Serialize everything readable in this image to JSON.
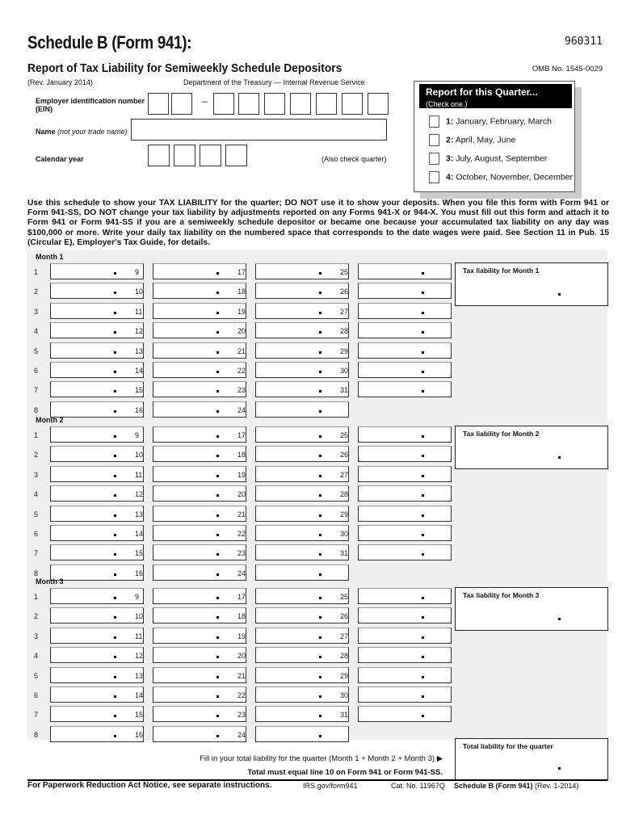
{
  "header": {
    "title": "Schedule B (Form 941):",
    "form_code": "960311",
    "subtitle": "Report of Tax Liability for Semiweekly Schedule Depositors",
    "omb": "OMB No. 1545-0029",
    "revision": "(Rev. January 2014)",
    "department": "Department of the Treasury — Internal Revenue Service"
  },
  "fields": {
    "ein_label_1": "Employer identification number",
    "ein_label_2": "(EIN)",
    "ein_dash": "–",
    "name_label": "Name",
    "name_hint": "(not your trade name)",
    "year_label": "Calendar year",
    "also_check": "(Also check quarter)"
  },
  "quarter": {
    "title": "Report for this Quarter...",
    "hint": "(Check one.)",
    "options": [
      {
        "num": "1:",
        "label": "January, February, March"
      },
      {
        "num": "2:",
        "label": "April, May, June"
      },
      {
        "num": "3:",
        "label": "July, August, September"
      },
      {
        "num": "4:",
        "label": "October, November, December"
      }
    ]
  },
  "instructions": "Use this schedule to show your TAX LIABILITY for the quarter; DO NOT use it to show your deposits. When you file this form with Form 941 or Form 941-SS, DO NOT change your tax liability by adjustments reported on any Forms 941-X or 944-X. You must fill out this form and attach it to Form 941 or Form 941-SS if you are a semiweekly schedule depositor or became one because your accumulated tax liability on any day was $100,000 or more. Write your daily tax liability on the numbered space that corresponds to the date wages were paid. See Section 11 in Pub. 15 (Circular E), Employer's Tax Guide, for details.",
  "months": [
    {
      "label": "Month 1",
      "total_label": "Tax liability for Month 1"
    },
    {
      "label": "Month 2",
      "total_label": "Tax liability for Month 2"
    },
    {
      "label": "Month 3",
      "total_label": "Tax liability for Month 3"
    }
  ],
  "day_columns": [
    [
      "1",
      "2",
      "3",
      "4",
      "5",
      "6",
      "7",
      "8"
    ],
    [
      "9",
      "10",
      "11",
      "12",
      "13",
      "14",
      "15",
      "16"
    ],
    [
      "17",
      "18",
      "19",
      "20",
      "21",
      "22",
      "23",
      "24"
    ],
    [
      "25",
      "26",
      "27",
      "28",
      "29",
      "30",
      "31"
    ]
  ],
  "total": {
    "label": "Total liability for the quarter",
    "instruction": "Fill in your total liability for the quarter (Month 1 + Month 2 + Month 3) ▶",
    "note": "Total must equal line 10 on Form 941 or Form 941-SS."
  },
  "footer": {
    "paperwork": "For Paperwork Reduction Act Notice, see separate instructions.",
    "url": "IRS.gov/form941",
    "cat": "Cat. No. 11967Q",
    "form_ref": "Schedule B (Form 941)",
    "rev": "(Rev. 1-2014)"
  }
}
